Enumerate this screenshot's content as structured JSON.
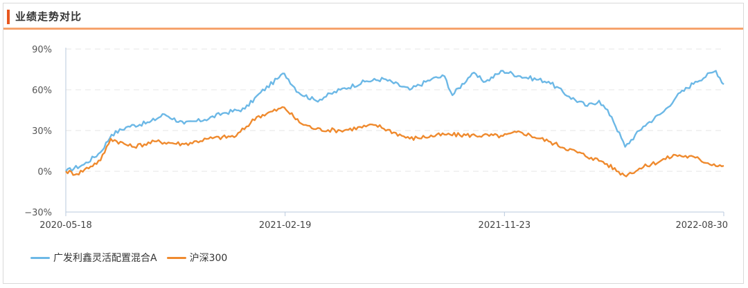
{
  "header": {
    "title": "业绩走势对比"
  },
  "chart_data": {
    "type": "line",
    "title": "业绩走势对比",
    "xlabel": "",
    "ylabel": "",
    "ylim": [
      -30,
      90
    ],
    "yticks": [
      -30,
      0,
      30,
      60,
      90
    ],
    "ytick_labels": [
      "−30%",
      "0%",
      "30%",
      "60%",
      "90%"
    ],
    "xtick_labels": [
      "2020-05-18",
      "2021-02-19",
      "2021-11-23",
      "2022-08-30"
    ],
    "x_start": "2020-05-18",
    "x_end": "2022-08-30",
    "grid": true,
    "legend_position": "bottom-left",
    "series": [
      {
        "name": "广发利鑫灵活配置混合A",
        "color": "#6cb8e6",
        "points": [
          [
            "2020-05-18",
            0
          ],
          [
            "2020-06-10",
            5
          ],
          [
            "2020-07-01",
            14
          ],
          [
            "2020-07-15",
            27
          ],
          [
            "2020-08-05",
            33
          ],
          [
            "2020-09-01",
            36
          ],
          [
            "2020-09-20",
            42
          ],
          [
            "2020-10-15",
            35
          ],
          [
            "2020-11-10",
            38
          ],
          [
            "2020-12-05",
            43
          ],
          [
            "2020-12-31",
            46
          ],
          [
            "2021-01-20",
            58
          ],
          [
            "2021-02-10",
            68
          ],
          [
            "2021-02-19",
            72
          ],
          [
            "2021-03-09",
            58
          ],
          [
            "2021-03-31",
            52
          ],
          [
            "2021-05-01",
            60
          ],
          [
            "2021-06-01",
            66
          ],
          [
            "2021-06-25",
            68
          ],
          [
            "2021-07-28",
            60
          ],
          [
            "2021-08-25",
            68
          ],
          [
            "2021-09-10",
            70
          ],
          [
            "2021-09-20",
            56
          ],
          [
            "2021-10-15",
            72
          ],
          [
            "2021-11-01",
            66
          ],
          [
            "2021-11-23",
            74
          ],
          [
            "2021-12-15",
            70
          ],
          [
            "2022-01-20",
            66
          ],
          [
            "2022-02-15",
            55
          ],
          [
            "2022-03-10",
            48
          ],
          [
            "2022-03-25",
            52
          ],
          [
            "2022-04-10",
            40
          ],
          [
            "2022-04-27",
            18
          ],
          [
            "2022-05-20",
            33
          ],
          [
            "2022-06-15",
            44
          ],
          [
            "2022-07-01",
            55
          ],
          [
            "2022-07-25",
            66
          ],
          [
            "2022-08-20",
            74
          ],
          [
            "2022-08-30",
            64
          ]
        ]
      },
      {
        "name": "沪深300",
        "color": "#ef8a2e",
        "points": [
          [
            "2020-05-18",
            0
          ],
          [
            "2020-06-01",
            -2
          ],
          [
            "2020-07-01",
            8
          ],
          [
            "2020-07-14",
            24
          ],
          [
            "2020-08-10",
            18
          ],
          [
            "2020-09-10",
            22
          ],
          [
            "2020-10-15",
            20
          ],
          [
            "2020-11-15",
            24
          ],
          [
            "2020-12-20",
            26
          ],
          [
            "2021-01-15",
            40
          ],
          [
            "2021-02-19",
            47
          ],
          [
            "2021-03-10",
            36
          ],
          [
            "2021-03-31",
            31
          ],
          [
            "2021-05-01",
            30
          ],
          [
            "2021-06-15",
            34
          ],
          [
            "2021-07-28",
            24
          ],
          [
            "2021-09-10",
            27
          ],
          [
            "2021-11-23",
            26
          ],
          [
            "2021-12-15",
            29
          ],
          [
            "2022-01-20",
            22
          ],
          [
            "2022-03-15",
            10
          ],
          [
            "2022-03-30",
            7
          ],
          [
            "2022-04-26",
            -3
          ],
          [
            "2022-05-20",
            3
          ],
          [
            "2022-06-30",
            12
          ],
          [
            "2022-07-25",
            10
          ],
          [
            "2022-08-10",
            6
          ],
          [
            "2022-08-30",
            4
          ]
        ]
      }
    ]
  }
}
